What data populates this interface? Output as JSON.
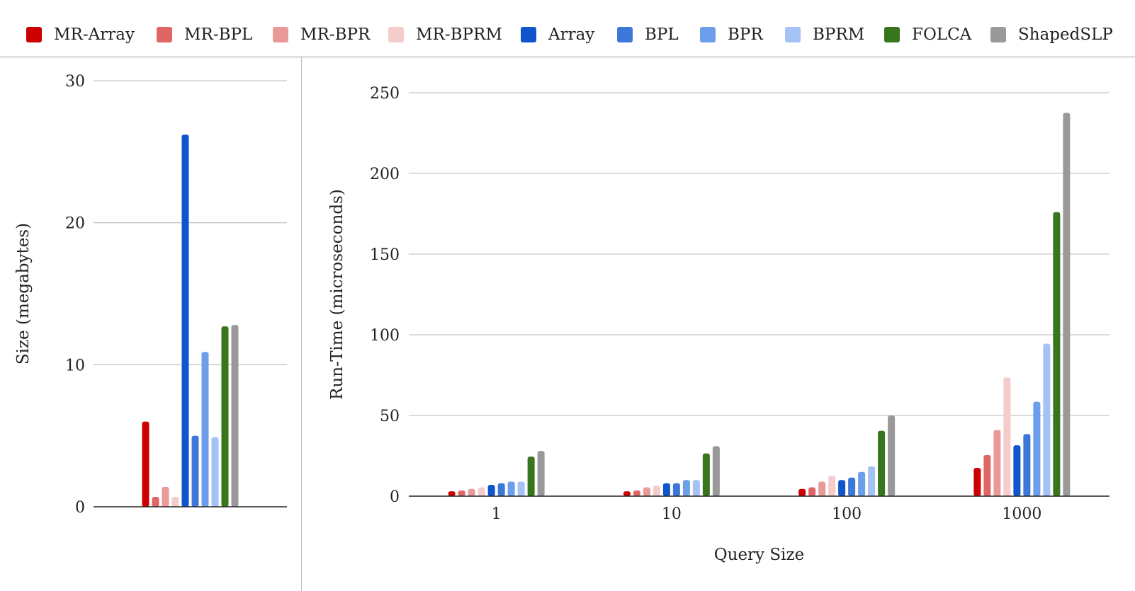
{
  "legend": [
    {
      "label": "MR-Array",
      "color": "#cc0000"
    },
    {
      "label": "MR-BPL",
      "color": "#e06666"
    },
    {
      "label": "MR-BPR",
      "color": "#ea9999"
    },
    {
      "label": "MR-BPRM",
      "color": "#f4cccc"
    },
    {
      "label": "Array",
      "color": "#1155cc"
    },
    {
      "label": "BPL",
      "color": "#3c78d8"
    },
    {
      "label": "BPR",
      "color": "#6d9eeb"
    },
    {
      "label": "BPRM",
      "color": "#a4c2f4"
    },
    {
      "label": "FOLCA",
      "color": "#38761d"
    },
    {
      "label": "ShapedSLP",
      "color": "#999999"
    }
  ],
  "chart_data": [
    {
      "type": "bar",
      "title": "",
      "xlabel": "",
      "ylabel": "Size (megabytes)",
      "ylim": [
        0,
        30
      ],
      "yticks": [
        0,
        10,
        20,
        30
      ],
      "categories": [
        ""
      ],
      "series": [
        {
          "name": "MR-Array",
          "values": [
            6.0
          ]
        },
        {
          "name": "MR-BPL",
          "values": [
            0.7
          ]
        },
        {
          "name": "MR-BPR",
          "values": [
            1.4
          ]
        },
        {
          "name": "MR-BPRM",
          "values": [
            0.7
          ]
        },
        {
          "name": "Array",
          "values": [
            26.2
          ]
        },
        {
          "name": "BPL",
          "values": [
            5.0
          ]
        },
        {
          "name": "BPR",
          "values": [
            10.9
          ]
        },
        {
          "name": "BPRM",
          "values": [
            4.9
          ]
        },
        {
          "name": "FOLCA",
          "values": [
            12.7
          ]
        },
        {
          "name": "ShapedSLP",
          "values": [
            12.8
          ]
        }
      ]
    },
    {
      "type": "bar",
      "title": "",
      "xlabel": "Query Size",
      "ylabel": "Run-Time (microseconds)",
      "ylim": [
        0,
        250
      ],
      "yticks": [
        0,
        50,
        100,
        150,
        200,
        250
      ],
      "categories": [
        "1",
        "10",
        "100",
        "1000"
      ],
      "series": [
        {
          "name": "MR-Array",
          "values": [
            3,
            3,
            4.5,
            17.5
          ]
        },
        {
          "name": "MR-BPL",
          "values": [
            3.5,
            3.5,
            5.5,
            25.5
          ]
        },
        {
          "name": "MR-BPR",
          "values": [
            4.5,
            5.5,
            9,
            41
          ]
        },
        {
          "name": "MR-BPRM",
          "values": [
            5.5,
            6.5,
            12.5,
            73.5
          ]
        },
        {
          "name": "Array",
          "values": [
            7,
            8,
            10,
            31.5
          ]
        },
        {
          "name": "BPL",
          "values": [
            8,
            8,
            11.5,
            38.5
          ]
        },
        {
          "name": "BPR",
          "values": [
            9,
            10,
            15,
            58.5
          ]
        },
        {
          "name": "BPRM",
          "values": [
            9,
            10,
            18.5,
            94.5
          ]
        },
        {
          "name": "FOLCA",
          "values": [
            24.5,
            26.5,
            40.5,
            176
          ]
        },
        {
          "name": "ShapedSLP",
          "values": [
            28,
            31,
            50,
            237.5
          ]
        }
      ]
    }
  ]
}
